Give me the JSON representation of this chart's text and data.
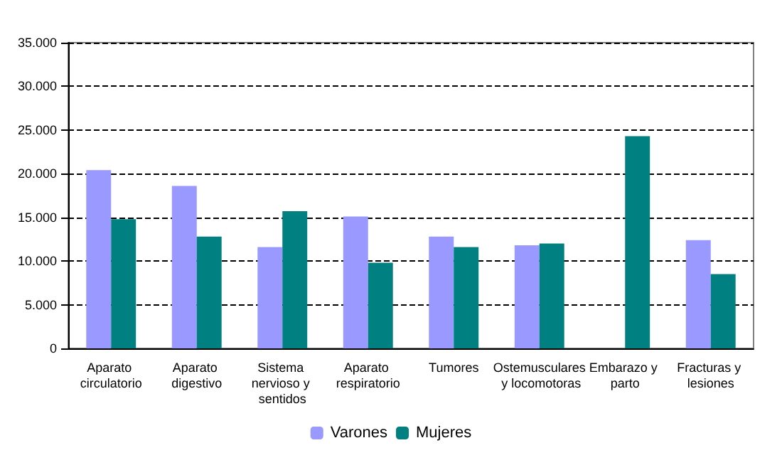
{
  "chart_data": {
    "type": "bar",
    "categories": [
      "Aparato circulatorio",
      "Aparato digestivo",
      "Sistema nervioso y sentidos",
      "Aparato respiratorio",
      "Tumores",
      "Ostemusculares y locomotoras",
      "Embarazo y parto",
      "Fracturas y lesiones"
    ],
    "series": [
      {
        "name": "Varones",
        "color": "#9999ff",
        "values": [
          20400,
          18600,
          11600,
          15100,
          12800,
          11800,
          null,
          12400
        ]
      },
      {
        "name": "Mujeres",
        "color": "#008080",
        "values": [
          14800,
          12800,
          15700,
          9800,
          11600,
          12000,
          24300,
          8500
        ]
      }
    ],
    "ylim": [
      0,
      35000
    ],
    "yticks": [
      0,
      {
        "value": 5000,
        "label": "5.000"
      },
      {
        "value": 10000,
        "label": "10.000"
      },
      {
        "value": 15000,
        "label": "15.000"
      },
      {
        "value": 20000,
        "label": "20.000"
      },
      {
        "value": 25000,
        "label": "25.000"
      },
      {
        "value": 30000,
        "label": "30.000"
      },
      {
        "value": 35000,
        "label": "35.000"
      }
    ],
    "grid": "y",
    "line_style": "dashed",
    "legend": "bottom"
  }
}
